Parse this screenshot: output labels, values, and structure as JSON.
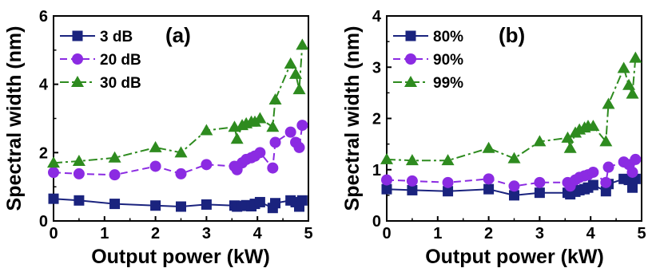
{
  "chart_data": [
    {
      "type": "line",
      "panel_label": "(a)",
      "xlabel": "Output power (kW)",
      "ylabel": "Spectral width (nm)",
      "xlim": [
        0,
        5
      ],
      "ylim": [
        0,
        6
      ],
      "xticks": [
        "0",
        "1",
        "2",
        "3",
        "4",
        "5"
      ],
      "yticks": [
        "0",
        "2",
        "4",
        "6"
      ],
      "legend_position": "top-left",
      "grid": false,
      "series": [
        {
          "name": "3 dB",
          "color": "#1a237e",
          "marker": "square",
          "line_style": "solid",
          "x": [
            0.0,
            0.5,
            1.2,
            2.0,
            2.5,
            3.0,
            3.55,
            3.6,
            3.7,
            3.78,
            3.88,
            3.95,
            4.05,
            4.3,
            4.35,
            4.65,
            4.75,
            4.82,
            4.88
          ],
          "y": [
            0.65,
            0.6,
            0.5,
            0.45,
            0.42,
            0.48,
            0.45,
            0.42,
            0.44,
            0.46,
            0.43,
            0.5,
            0.55,
            0.38,
            0.52,
            0.6,
            0.55,
            0.42,
            0.6
          ]
        },
        {
          "name": "20 dB",
          "color": "#8b2be2",
          "marker": "circle",
          "line_style": "dashed",
          "x": [
            0.0,
            0.5,
            1.2,
            2.0,
            2.5,
            3.0,
            3.55,
            3.6,
            3.7,
            3.78,
            3.88,
            3.95,
            4.05,
            4.3,
            4.35,
            4.65,
            4.75,
            4.82,
            4.88
          ],
          "y": [
            1.42,
            1.38,
            1.35,
            1.6,
            1.38,
            1.65,
            1.6,
            1.5,
            1.7,
            1.8,
            1.85,
            1.9,
            2.0,
            1.55,
            2.3,
            2.6,
            2.3,
            2.15,
            2.8
          ]
        },
        {
          "name": "30 dB",
          "color": "#2e8b1f",
          "marker": "triangle",
          "line_style": "dashdot",
          "x": [
            0.0,
            0.5,
            1.2,
            2.0,
            2.5,
            3.0,
            3.55,
            3.6,
            3.7,
            3.78,
            3.88,
            3.95,
            4.05,
            4.3,
            4.35,
            4.65,
            4.75,
            4.82,
            4.88
          ],
          "y": [
            1.7,
            1.75,
            1.85,
            2.15,
            2.0,
            2.65,
            2.75,
            2.4,
            2.8,
            2.85,
            2.9,
            2.9,
            3.0,
            2.75,
            3.55,
            4.6,
            4.3,
            3.85,
            5.15
          ]
        }
      ]
    },
    {
      "type": "line",
      "panel_label": "(b)",
      "xlabel": "Output power (kW)",
      "ylabel": "Spectral width (nm)",
      "xlim": [
        0,
        5
      ],
      "ylim": [
        0,
        4
      ],
      "xticks": [
        "0",
        "1",
        "2",
        "3",
        "4",
        "5"
      ],
      "yticks": [
        "0",
        "1",
        "2",
        "3",
        "4"
      ],
      "legend_position": "top-left",
      "grid": false,
      "series": [
        {
          "name": "80%",
          "color": "#1a237e",
          "marker": "square",
          "line_style": "solid",
          "x": [
            0.0,
            0.5,
            1.2,
            2.0,
            2.5,
            3.0,
            3.55,
            3.6,
            3.7,
            3.78,
            3.88,
            3.95,
            4.05,
            4.3,
            4.35,
            4.65,
            4.75,
            4.82,
            4.88
          ],
          "y": [
            0.62,
            0.6,
            0.58,
            0.62,
            0.5,
            0.55,
            0.55,
            0.52,
            0.57,
            0.6,
            0.62,
            0.65,
            0.7,
            0.58,
            0.72,
            0.82,
            0.8,
            0.65,
            0.82
          ]
        },
        {
          "name": "90%",
          "color": "#8b2be2",
          "marker": "circle",
          "line_style": "dashed",
          "x": [
            0.0,
            0.5,
            1.2,
            2.0,
            2.5,
            3.0,
            3.55,
            3.6,
            3.7,
            3.78,
            3.88,
            3.95,
            4.05,
            4.3,
            4.35,
            4.65,
            4.75,
            4.82,
            4.88
          ],
          "y": [
            0.8,
            0.78,
            0.75,
            0.82,
            0.68,
            0.75,
            0.75,
            0.68,
            0.8,
            0.85,
            0.88,
            0.9,
            0.95,
            0.75,
            1.05,
            1.15,
            1.1,
            0.95,
            1.2
          ]
        },
        {
          "name": "99%",
          "color": "#2e8b1f",
          "marker": "triangle",
          "line_style": "dashdot",
          "x": [
            0.0,
            0.5,
            1.2,
            2.0,
            2.5,
            3.0,
            3.55,
            3.6,
            3.7,
            3.78,
            3.88,
            3.95,
            4.05,
            4.3,
            4.35,
            4.65,
            4.75,
            4.82,
            4.88
          ],
          "y": [
            1.2,
            1.18,
            1.18,
            1.42,
            1.22,
            1.55,
            1.62,
            1.42,
            1.72,
            1.78,
            1.82,
            1.85,
            1.85,
            1.55,
            2.28,
            2.98,
            2.65,
            2.48,
            3.18
          ]
        }
      ]
    }
  ]
}
